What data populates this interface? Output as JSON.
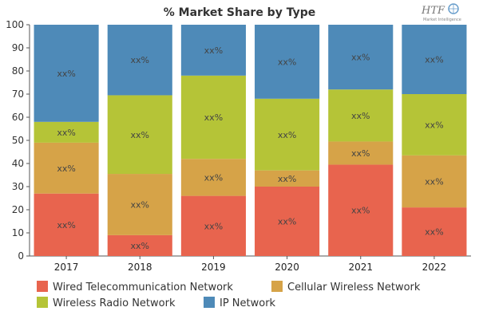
{
  "logo": {
    "brand": "HTF",
    "tagline": "Market Intelligence"
  },
  "chart_data": {
    "type": "bar",
    "stacked": true,
    "title": "% Market Share by Type",
    "xlabel": "",
    "ylabel": "",
    "ylim": [
      0,
      100
    ],
    "yticks": [
      0,
      10,
      20,
      30,
      40,
      50,
      60,
      70,
      80,
      90,
      100
    ],
    "grid": false,
    "legend_position": "bottom",
    "categories": [
      "2017",
      "2018",
      "2019",
      "2020",
      "2021",
      "2022"
    ],
    "series": [
      {
        "name": "Wired Telecommunication Network",
        "color": "#e8644e",
        "values": [
          27,
          9,
          26,
          30,
          39.5,
          21
        ],
        "labels": [
          "xx%",
          "xx%",
          "xx%",
          "xx%",
          "xx%",
          "xx%"
        ]
      },
      {
        "name": "Cellular Wireless Network",
        "color": "#d6a348",
        "values": [
          22,
          26.5,
          16,
          7,
          10,
          22.5
        ],
        "labels": [
          "xx%",
          "xx%",
          "xx%",
          "xx%",
          "xx%",
          "xx%"
        ]
      },
      {
        "name": "Wireless Radio Network",
        "color": "#b5c437",
        "values": [
          9,
          34,
          36,
          31,
          22.5,
          26.5
        ],
        "labels": [
          "xx%",
          "xx%",
          "xx%",
          "xx%",
          "xx%",
          "xx%"
        ]
      },
      {
        "name": "IP Network",
        "color": "#4e8ab8",
        "values": [
          42,
          30.5,
          22,
          32,
          28,
          30
        ],
        "labels": [
          "xx%",
          "xx%",
          "xx%",
          "xx%",
          "xx%",
          "xx%"
        ]
      }
    ]
  }
}
